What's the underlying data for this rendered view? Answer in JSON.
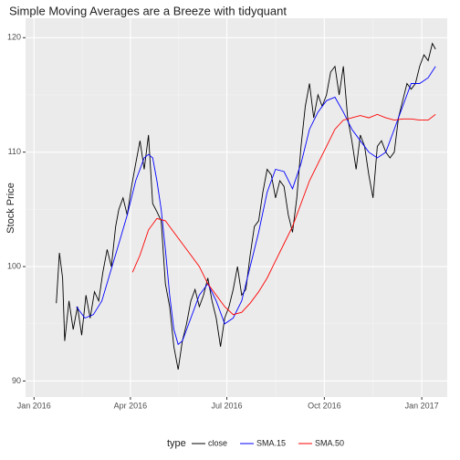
{
  "chart_data": {
    "type": "line",
    "title": "Simple Moving Averages are a Breeze with tidyquant",
    "y_label": "Stock Price",
    "legend_title": "type",
    "legend": "bottom",
    "grid": true,
    "xlim": [
      -8,
      390
    ],
    "ylim": [
      88.6,
      121.7
    ],
    "xticks": [
      {
        "value": 0,
        "label": "Jan 2016"
      },
      {
        "value": 91,
        "label": "Apr 2016"
      },
      {
        "value": 182,
        "label": "Jul 2016"
      },
      {
        "value": 274,
        "label": "Oct 2016"
      },
      {
        "value": 366,
        "label": "Jan 2017"
      }
    ],
    "yticks": [
      90,
      100,
      110,
      120
    ],
    "series": [
      {
        "name": "close",
        "color": "#000000",
        "x": [
          21,
          24,
          27,
          29,
          33,
          37,
          41,
          45,
          49,
          53,
          57,
          61,
          65,
          69,
          73,
          77,
          80,
          84,
          88,
          92,
          96,
          100,
          104,
          108,
          112,
          116,
          120,
          124,
          128,
          132,
          136,
          140,
          144,
          148,
          152,
          156,
          160,
          164,
          168,
          172,
          176,
          180,
          184,
          188,
          192,
          196,
          200,
          204,
          208,
          212,
          216,
          220,
          224,
          228,
          232,
          236,
          240,
          244,
          248,
          252,
          256,
          260,
          264,
          268,
          272,
          276,
          280,
          284,
          288,
          292,
          296,
          300,
          304,
          308,
          312,
          316,
          320,
          324,
          328,
          332,
          336,
          340,
          344,
          348,
          352,
          356,
          360,
          364,
          368,
          372,
          376,
          379
        ],
        "values": [
          96.8,
          101.2,
          99,
          93.5,
          97,
          94.5,
          96.5,
          94,
          97.5,
          95.5,
          97.8,
          97,
          99.5,
          101.5,
          100,
          103.5,
          105,
          106,
          104.5,
          107,
          109,
          111,
          108.5,
          111.5,
          105.5,
          104.8,
          104,
          98.5,
          96.5,
          93,
          91,
          93.5,
          95,
          97,
          98,
          96.5,
          97.5,
          99,
          97,
          95.5,
          93,
          95.5,
          96.5,
          98,
          100,
          97.5,
          98,
          101,
          103.5,
          104,
          106.5,
          108.5,
          108,
          106,
          107.5,
          107,
          104.5,
          103,
          106,
          110.5,
          114,
          116,
          113,
          115,
          114,
          115,
          117,
          117.5,
          115,
          117.5,
          113,
          111,
          108.5,
          111.5,
          110.5,
          108,
          106,
          110.5,
          111,
          110,
          109.5,
          110,
          113,
          114.5,
          116,
          115.5,
          116,
          117.5,
          118.5,
          118,
          119.5,
          119
        ]
      },
      {
        "name": "SMA.15",
        "color": "#0000ff",
        "x": [
          40,
          48,
          56,
          64,
          72,
          80,
          88,
          96,
          104,
          108,
          112,
          116,
          120,
          124,
          128,
          132,
          136,
          140,
          148,
          156,
          164,
          172,
          180,
          188,
          196,
          204,
          212,
          220,
          228,
          236,
          244,
          252,
          260,
          268,
          276,
          284,
          292,
          300,
          308,
          316,
          324,
          332,
          340,
          348,
          356,
          364,
          372,
          379
        ],
        "values": [
          96.5,
          95.5,
          95.8,
          97,
          99.5,
          102,
          104.5,
          107.5,
          109.5,
          109.8,
          109.5,
          107.5,
          105,
          101.5,
          97.5,
          94.5,
          93.2,
          93.5,
          95.5,
          97.5,
          98.5,
          97,
          95,
          95.5,
          97,
          100,
          103,
          106.5,
          108.5,
          108.3,
          106.8,
          109,
          112,
          113.5,
          114.5,
          114.8,
          113.5,
          112,
          111,
          110,
          109.5,
          110,
          112,
          114,
          116,
          116,
          116.5,
          117.5
        ]
      },
      {
        "name": "SMA.50",
        "color": "#ff0000",
        "x": [
          93,
          100,
          108,
          116,
          124,
          132,
          140,
          148,
          156,
          164,
          172,
          180,
          188,
          196,
          204,
          212,
          220,
          228,
          236,
          244,
          252,
          260,
          268,
          276,
          284,
          292,
          300,
          308,
          316,
          324,
          332,
          340,
          348,
          356,
          364,
          372,
          379
        ],
        "values": [
          99.5,
          101,
          103.2,
          104.2,
          104,
          103,
          102,
          101,
          100,
          98.5,
          97.5,
          96.5,
          95.8,
          96,
          96.8,
          97.8,
          99,
          100.5,
          102,
          103.5,
          105.5,
          107.5,
          109,
          110.5,
          112,
          112.8,
          113,
          113.2,
          113,
          113.3,
          113,
          112.8,
          112.9,
          112.9,
          112.8,
          112.8,
          113.3
        ]
      }
    ]
  }
}
